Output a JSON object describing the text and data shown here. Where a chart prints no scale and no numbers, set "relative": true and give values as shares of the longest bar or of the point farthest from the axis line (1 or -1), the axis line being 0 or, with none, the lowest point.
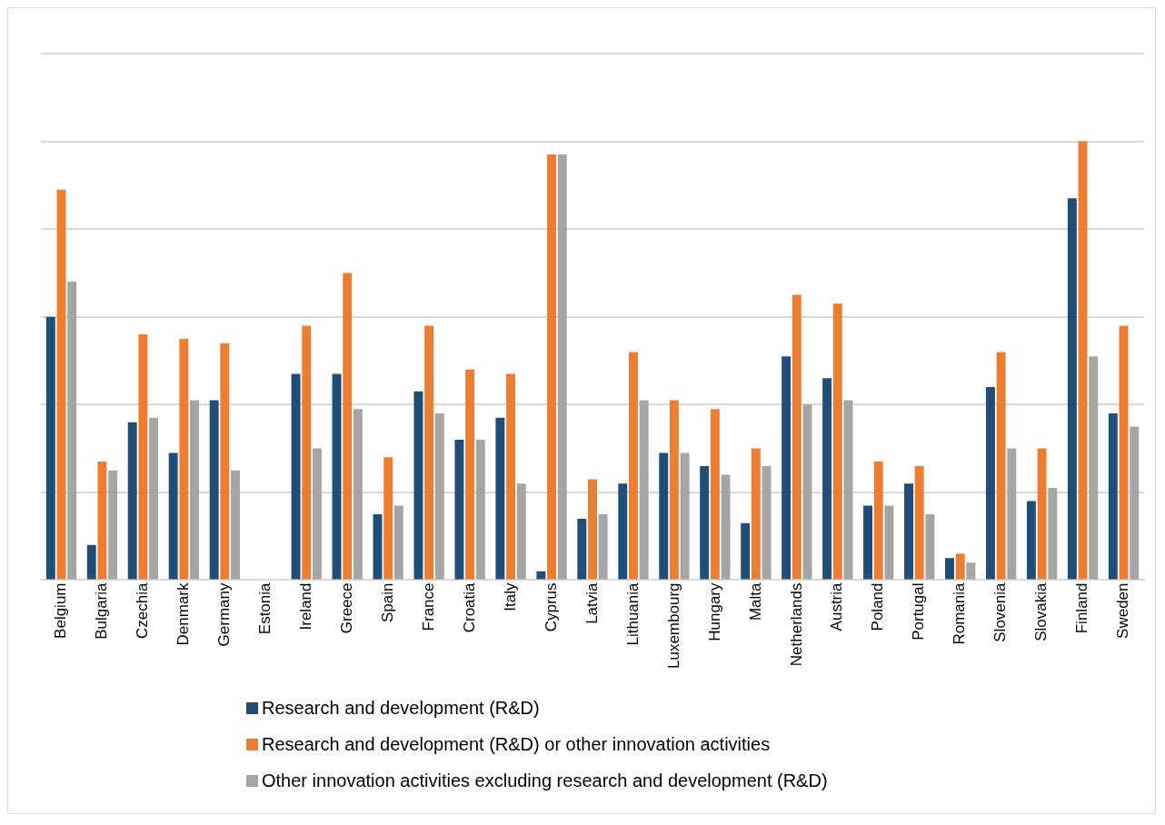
{
  "chart_data": {
    "type": "bar",
    "relative": true,
    "grid": "y",
    "legend": "bottom",
    "categories": [
      "Belgium",
      "Bulgaria",
      "Czechia",
      "Denmark",
      "Germany",
      "Estonia",
      "Ireland",
      "Greece",
      "Spain",
      "France",
      "Croatia",
      "Italy",
      "Cyprus",
      "Latvia",
      "Lithuania",
      "Luxembourg",
      "Hungary",
      "Malta",
      "Netherlands",
      "Austria",
      "Poland",
      "Portugal",
      "Romania",
      "Slovenia",
      "Slovakia",
      "Finland",
      "Sweden"
    ],
    "series": [
      {
        "name": "Research and development (R&D)",
        "color": "#1f4e79",
        "values": [
          0.6,
          0.08,
          0.36,
          0.29,
          0.41,
          null,
          0.47,
          0.47,
          0.15,
          0.43,
          0.32,
          0.37,
          0.02,
          0.14,
          0.22,
          0.29,
          0.26,
          0.13,
          0.51,
          0.46,
          0.17,
          0.22,
          0.05,
          0.44,
          0.18,
          0.87,
          0.38
        ]
      },
      {
        "name": "Research and development (R&D) or other innovation activities",
        "color": "#ed7d31",
        "values": [
          0.89,
          0.27,
          0.56,
          0.55,
          0.54,
          null,
          0.58,
          0.7,
          0.28,
          0.58,
          0.48,
          0.47,
          0.97,
          0.23,
          0.52,
          0.41,
          0.39,
          0.3,
          0.65,
          0.63,
          0.27,
          0.26,
          0.06,
          0.52,
          0.3,
          1,
          0.58
        ]
      },
      {
        "name": "Other innovation activities excluding research and development (R&D)",
        "color": "#a5a5a5",
        "values": [
          0.68,
          0.25,
          0.37,
          0.41,
          0.25,
          null,
          0.3,
          0.39,
          0.17,
          0.38,
          0.32,
          0.22,
          0.97,
          0.15,
          0.41,
          0.29,
          0.24,
          0.26,
          0.4,
          0.41,
          0.17,
          0.15,
          0.04,
          0.3,
          0.21,
          0.51,
          0.35
        ]
      }
    ]
  }
}
